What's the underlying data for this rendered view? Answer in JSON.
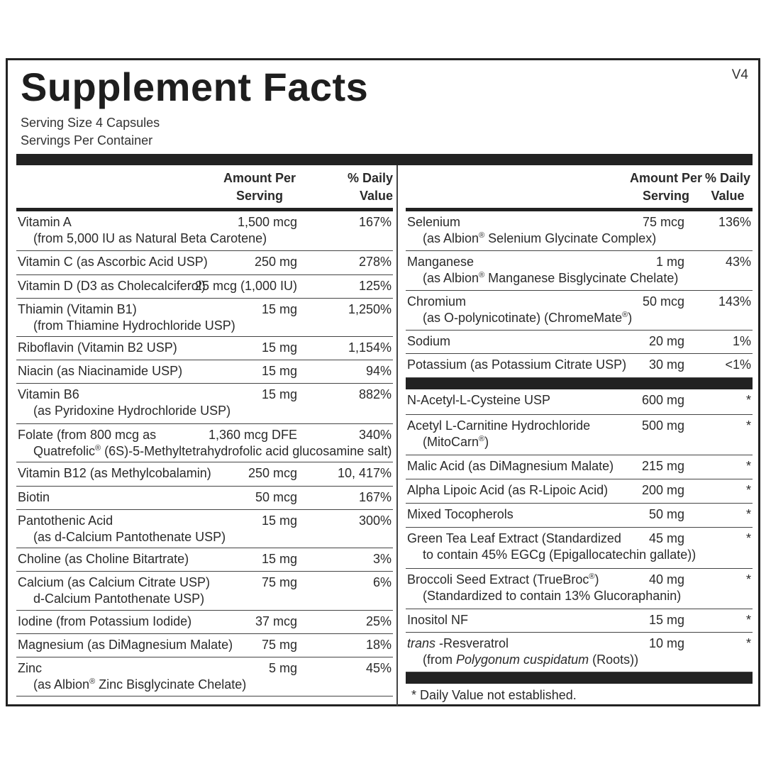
{
  "title": "Supplement Facts",
  "version": "V4",
  "serving_size": "Serving Size  4 Capsules",
  "servings_per_container": "Servings Per Container",
  "headers": {
    "amount_line1": "Amount Per",
    "amount_line2": "Serving",
    "dv_line1": "% Daily",
    "dv_line2": "Value"
  },
  "left_rows": [
    {
      "name": "Vitamin A",
      "sub": "(from 5,000 IU as Natural Beta Carotene)",
      "amount": "1,500 mcg",
      "dv": "167%"
    },
    {
      "name": "Vitamin C (as Ascorbic Acid USP)",
      "amount": "250 mg",
      "dv": "278%"
    },
    {
      "name": "Vitamin D (D3 as Cholecalciferol)",
      "amount": "25 mcg (1,000 IU)",
      "dv": "125%"
    },
    {
      "name": "Thiamin (Vitamin B1)",
      "sub": "(from Thiamine Hydrochloride USP)",
      "amount": "15 mg",
      "dv": "1,250%"
    },
    {
      "name": "Riboflavin (Vitamin B2 USP)",
      "amount": "15 mg",
      "dv": "1,154%"
    },
    {
      "name": "Niacin (as Niacinamide USP)",
      "amount": "15 mg",
      "dv": "94%"
    },
    {
      "name": "Vitamin B6",
      "sub": "(as Pyridoxine Hydrochloride USP)",
      "amount": "15 mg",
      "dv": "882%"
    },
    {
      "name": "Folate (from 800 mcg as",
      "sub_pre": "Quatrefolic",
      "sub_sup": "®",
      "sub_post": " (6S)-5-Methyltetrahydrofolic acid glucosamine salt)",
      "amount": "1,360 mcg DFE",
      "dv": "340%"
    },
    {
      "name": "Vitamin B12 (as Methylcobalamin)",
      "amount": "250 mcg",
      "dv": "10, 417%"
    },
    {
      "name": "Biotin",
      "amount": "50 mcg",
      "dv": "167%"
    },
    {
      "name": "Pantothenic Acid",
      "sub": "(as d-Calcium Pantothenate USP)",
      "amount": "15 mg",
      "dv": "300%"
    },
    {
      "name": "Choline (as Choline Bitartrate)",
      "amount": "15 mg",
      "dv": "3%"
    },
    {
      "name": "Calcium (as Calcium Citrate USP)",
      "sub": "d-Calcium Pantothenate USP)",
      "amount": "75 mg",
      "dv": "6%"
    },
    {
      "name": "Iodine (from Potassium Iodide)",
      "amount": "37 mcg",
      "dv": "25%"
    },
    {
      "name": "Magnesium (as DiMagnesium Malate)",
      "amount": "75 mg",
      "dv": "18%"
    },
    {
      "name": "Zinc",
      "sub_pre": "(as Albion",
      "sub_sup": "®",
      "sub_post": " Zinc Bisglycinate Chelate)",
      "amount": "5 mg",
      "dv": "45%"
    }
  ],
  "right_rows_minerals": [
    {
      "name": "Selenium",
      "sub_pre": "(as Albion",
      "sub_sup": "®",
      "sub_post": " Selenium Glycinate Complex)",
      "amount": "75 mcg",
      "dv": "136%"
    },
    {
      "name": "Manganese",
      "sub_pre": "(as Albion",
      "sub_sup": "®",
      "sub_post": " Manganese Bisglycinate Chelate)",
      "amount": "1 mg",
      "dv": "43%"
    },
    {
      "name": "Chromium",
      "sub_pre": "(as O-polynicotinate) (ChromeMate",
      "sub_sup": "®",
      "sub_post": ")",
      "amount": "50 mcg",
      "dv": "143%"
    },
    {
      "name": "Sodium",
      "amount": "20 mg",
      "dv": "1%"
    },
    {
      "name": "Potassium (as Potassium Citrate USP)",
      "amount": "30 mg",
      "dv": "<1%"
    }
  ],
  "right_rows_other": [
    {
      "name": "N-Acetyl-L-Cysteine USP",
      "amount": "600 mg",
      "dv": "*"
    },
    {
      "name": "Acetyl L-Carnitine Hydrochloride",
      "sub_pre": "(MitoCarn",
      "sub_sup": "®",
      "sub_post": ")",
      "amount": "500 mg",
      "dv": "*"
    },
    {
      "name": "Malic Acid (as DiMagnesium Malate)",
      "amount": "215 mg",
      "dv": "*"
    },
    {
      "name": "Alpha Lipoic Acid (as R-Lipoic Acid)",
      "amount": "200 mg",
      "dv": "*"
    },
    {
      "name": "Mixed Tocopherols",
      "amount": "50 mg",
      "dv": "*"
    },
    {
      "name": "Green Tea Leaf Extract (Standardized",
      "sub": "to contain 45% EGCg (Epigallocatechin gallate))",
      "amount": "45 mg",
      "dv": "*"
    },
    {
      "name_pre": "Broccoli Seed Extract (TrueBroc",
      "name_sup": "®",
      "name_post": ")",
      "sub": "(Standardized to contain 13% Glucoraphanin)",
      "amount": "40 mg",
      "dv": "*"
    },
    {
      "name": "Inositol NF",
      "amount": "15 mg",
      "dv": "*"
    },
    {
      "name_em": "trans",
      "name_post": " -Resveratrol",
      "sub_pre": "(from ",
      "sub_em": "Polygonum cuspidatum",
      "sub_post": " (Roots))",
      "amount": "10 mg",
      "dv": "*"
    }
  ],
  "footnote": "*  Daily Value not established."
}
